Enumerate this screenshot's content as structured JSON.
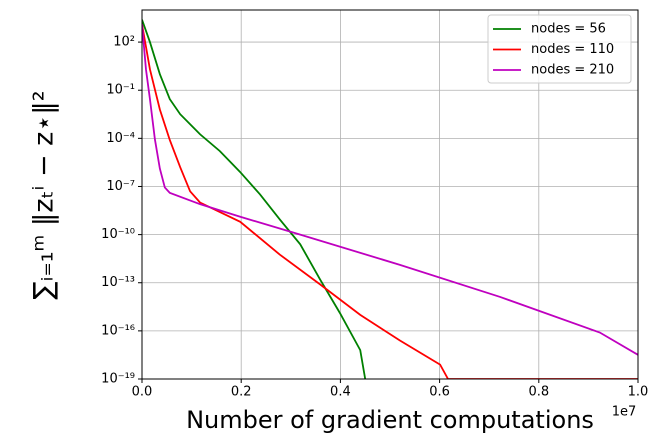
{
  "chart_data": {
    "type": "line",
    "x_label": "Number of gradient computations",
    "y_label": "∑ᵢ₌₁ᵐ ‖zₜⁱ − z⋆‖²",
    "x_offset_label": "1e7",
    "xlim": [
      0,
      1.0
    ],
    "xticks": [
      {
        "value": 0,
        "label": "0.0"
      },
      0.2,
      0.4,
      0.6,
      0.8,
      {
        "value": 1.0,
        "label": "1.0"
      }
    ],
    "ylim": [
      1e-19,
      10000.0
    ],
    "log_y": true,
    "yticks": [
      {
        "value": 100.0,
        "label": "10²"
      },
      {
        "value": 0.1,
        "label": "10⁻¹"
      },
      {
        "value": 0.0001,
        "label": "10⁻⁴"
      },
      {
        "value": 1e-07,
        "label": "10⁻⁷"
      },
      {
        "value": 1e-10,
        "label": "10⁻¹⁰"
      },
      {
        "value": 1e-13,
        "label": "10⁻¹³"
      },
      {
        "value": 1e-16,
        "label": "10⁻¹⁶"
      },
      {
        "value": 1e-19,
        "label": "10⁻¹⁹"
      }
    ],
    "grid": true,
    "legend": "upper right",
    "series": [
      {
        "name": "nodes = 56",
        "color": "#008000",
        "x": [
          0,
          0.016,
          0.036,
          0.056,
          0.077,
          0.117,
          0.157,
          0.198,
          0.238,
          0.278,
          0.319,
          0.359,
          0.399,
          0.44,
          0.45
        ],
        "values": [
          2500.0,
          100.0,
          1,
          0.028,
          0.0032,
          0.00018,
          1.6e-05,
          7.9e-07,
          3.2e-08,
          8.7e-10,
          2.5e-11,
          1.6e-13,
          1.3e-15,
          6.3e-18,
          1e-19
        ]
      },
      {
        "name": "nodes = 110",
        "color": "#ff0000",
        "x": [
          0,
          0.016,
          0.036,
          0.056,
          0.077,
          0.097,
          0.117,
          0.198,
          0.278,
          0.359,
          0.44,
          0.52,
          0.601,
          0.617,
          1.0
        ],
        "values": [
          1300.0,
          2,
          0.0063,
          7.9e-05,
          1.6e-06,
          5e-08,
          1e-08,
          6.3e-10,
          5.6e-12,
          7.9e-14,
          1e-15,
          2.5e-17,
          7.9e-19,
          1e-19,
          1e-19
        ]
      },
      {
        "name": "nodes = 210",
        "color": "#bf00bf",
        "x": [
          0,
          0.008,
          0.016,
          0.026,
          0.036,
          0.046,
          0.056,
          0.117,
          0.198,
          0.319,
          0.52,
          0.722,
          0.923,
          1.0
        ],
        "values": [
          1300.0,
          2,
          0.028,
          8.7e-05,
          1.3e-06,
          8.7e-08,
          4e-08,
          7.9e-09,
          1.3e-09,
          1e-10,
          1.3e-12,
          1.3e-14,
          7.9e-17,
          3.2e-18
        ]
      }
    ]
  }
}
